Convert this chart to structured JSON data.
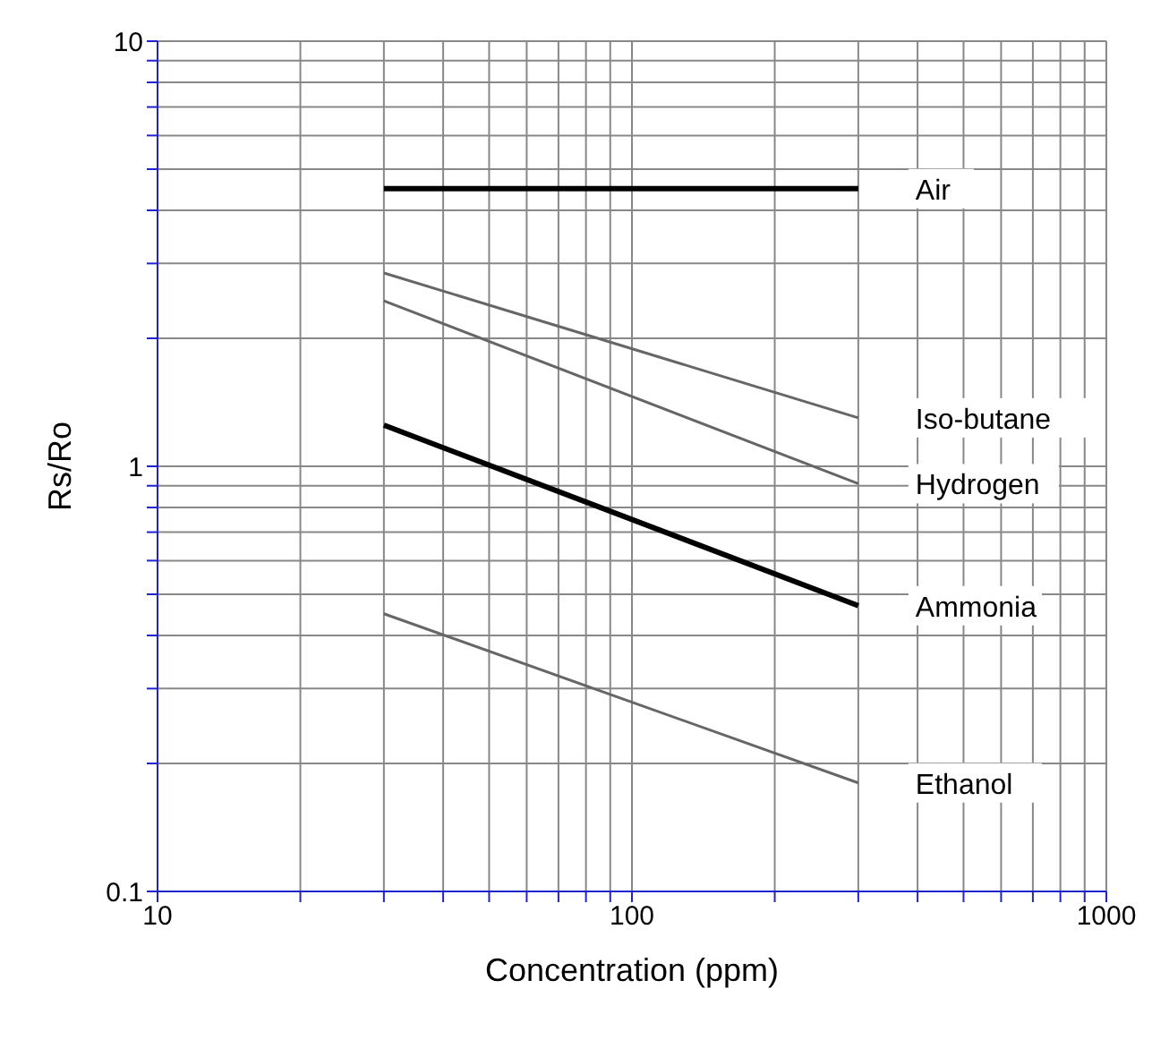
{
  "chart_data": {
    "type": "line",
    "xlabel": "Concentration (ppm)",
    "ylabel": "Rs/Ro",
    "log": "xy",
    "grid": true,
    "legend": false,
    "marker": "none",
    "line_style": "solid",
    "xlim": [
      10,
      1000
    ],
    "ylim": [
      0.1,
      10
    ],
    "xticks": [
      10,
      {
        "value": 20,
        "label": null
      },
      {
        "value": 30,
        "label": null
      },
      {
        "value": 40,
        "label": null
      },
      {
        "value": 50,
        "label": null
      },
      {
        "value": 60,
        "label": null
      },
      {
        "value": 70,
        "label": null
      },
      {
        "value": 80,
        "label": null
      },
      {
        "value": 90,
        "label": null
      },
      100,
      {
        "value": 200,
        "label": null
      },
      {
        "value": 300,
        "label": null
      },
      {
        "value": 400,
        "label": null
      },
      {
        "value": 500,
        "label": null
      },
      {
        "value": 600,
        "label": null
      },
      {
        "value": 700,
        "label": null
      },
      {
        "value": 800,
        "label": null
      },
      {
        "value": 900,
        "label": null
      },
      1000
    ],
    "yticks": [
      0.1,
      {
        "value": 0.2,
        "label": null
      },
      {
        "value": 0.3,
        "label": null
      },
      {
        "value": 0.4,
        "label": null
      },
      {
        "value": 0.5,
        "label": null
      },
      {
        "value": 0.6,
        "label": null
      },
      {
        "value": 0.7,
        "label": null
      },
      {
        "value": 0.8,
        "label": null
      },
      {
        "value": 0.9,
        "label": null
      },
      1,
      {
        "value": 2,
        "label": null
      },
      {
        "value": 3,
        "label": null
      },
      {
        "value": 4,
        "label": null
      },
      {
        "value": 5,
        "label": null
      },
      {
        "value": 6,
        "label": null
      },
      {
        "value": 7,
        "label": null
      },
      {
        "value": 8,
        "label": null
      },
      {
        "value": 9,
        "label": null
      },
      10
    ],
    "x": [
      30,
      300
    ],
    "series": [
      {
        "name": "Air",
        "color": "#000000",
        "values": [
          4.5,
          4.5
        ]
      },
      {
        "name": "Iso-butane",
        "color": "#666666",
        "values": [
          2.85,
          1.3
        ]
      },
      {
        "name": "Hydrogen",
        "color": "#666666",
        "values": [
          2.45,
          0.91
        ]
      },
      {
        "name": "Ammonia",
        "color": "#000000",
        "values": [
          1.25,
          0.47
        ]
      },
      {
        "name": "Ethanol",
        "color": "#666666",
        "values": [
          0.45,
          0.18
        ]
      }
    ]
  }
}
